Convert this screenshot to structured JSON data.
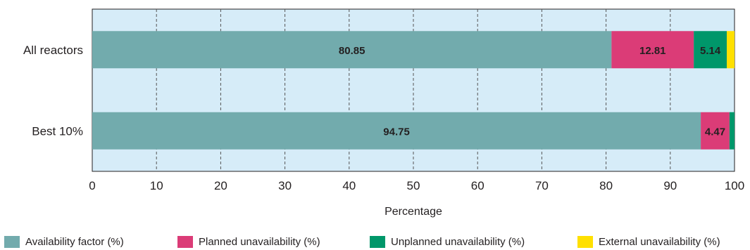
{
  "chart_data": {
    "type": "bar",
    "orientation": "horizontal",
    "stacked": true,
    "categories": [
      "All reactors",
      "Best 10%"
    ],
    "series": [
      {
        "name": "Availability factor (%)",
        "color": "#72abad",
        "values": [
          80.85,
          94.75
        ],
        "labels": [
          "80.85",
          "94.75"
        ]
      },
      {
        "name": "Planned unavailability (%)",
        "color": "#db3c77",
        "values": [
          12.81,
          4.47
        ],
        "labels": [
          "12.81",
          "4.47"
        ]
      },
      {
        "name": "Unplanned unavailability (%)",
        "color": "#00976a",
        "values": [
          5.14,
          0.78
        ],
        "labels": [
          "5.14",
          ""
        ]
      },
      {
        "name": "External unavailability (%)",
        "color": "#ffe000",
        "values": [
          1.2,
          0
        ],
        "labels": [
          "",
          ""
        ]
      }
    ],
    "xlabel": "Percentage",
    "ylabel": "",
    "xlim": [
      0,
      100
    ],
    "xticks": [
      "0",
      "10",
      "20",
      "30",
      "40",
      "50",
      "60",
      "70",
      "80",
      "90",
      "100"
    ],
    "grid": "vertical dashed",
    "legend_position": "bottom"
  },
  "colors": {
    "plot_background": "#d6ecf8",
    "axis": "#231f20",
    "grid": "#555555"
  }
}
